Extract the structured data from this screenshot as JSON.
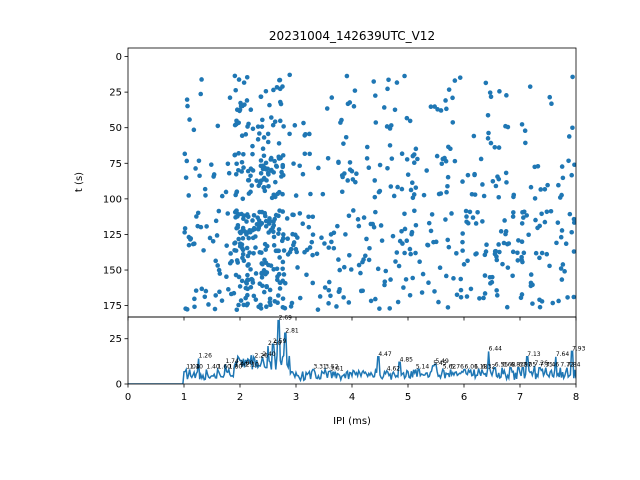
{
  "chart_data": [
    {
      "type": "scatter",
      "title": "20231004_142639UTC_V12",
      "xlabel": "",
      "ylabel": "t (s)",
      "xlim": [
        0,
        8
      ],
      "ylim": [
        183,
        -6
      ],
      "y_inverted": true,
      "yticks": [
        0,
        25,
        50,
        75,
        100,
        125,
        150,
        175
      ],
      "xticks": [
        0,
        1,
        2,
        3,
        4,
        5,
        6,
        7,
        8
      ],
      "point_color": "#1f77b4",
      "bands": [
        {
          "t_min": 12,
          "t_max": 65,
          "x_min": 1.0,
          "x_max": 8.0,
          "density": 0.5
        },
        {
          "t_min": 68,
          "t_max": 100,
          "x_min": 1.0,
          "x_max": 8.0,
          "density": 0.7
        },
        {
          "t_min": 108,
          "t_max": 140,
          "x_min": 1.0,
          "x_max": 8.0,
          "density": 1.0
        },
        {
          "t_min": 140,
          "t_max": 178,
          "x_min": 1.0,
          "x_max": 8.0,
          "density": 0.8
        }
      ]
    },
    {
      "type": "line",
      "xlabel": "IPI (ms)",
      "ylabel": "",
      "xlim": [
        0,
        8
      ],
      "ylim": [
        0,
        37
      ],
      "yticks": [
        0,
        25
      ],
      "xticks": [
        0,
        1,
        2,
        3,
        4,
        5,
        6,
        7,
        8
      ],
      "line_color": "#1f77b4",
      "peaks": [
        {
          "x": 1.04,
          "y": 8,
          "label": "1.04"
        },
        {
          "x": 1.1,
          "y": 8,
          "label": "1.10"
        },
        {
          "x": 1.26,
          "y": 14,
          "label": "1.26"
        },
        {
          "x": 1.4,
          "y": 8,
          "label": "1.40"
        },
        {
          "x": 1.6,
          "y": 8,
          "label": "1.60"
        },
        {
          "x": 1.74,
          "y": 11,
          "label": "1.74"
        },
        {
          "x": 1.8,
          "y": 8,
          "label": "1.80"
        },
        {
          "x": 1.9,
          "y": 9,
          "label": "1.90"
        },
        {
          "x": 2.0,
          "y": 10,
          "label": "2.00"
        },
        {
          "x": 2.1,
          "y": 9,
          "label": "2.10"
        },
        {
          "x": 2.26,
          "y": 14,
          "label": "2.26"
        },
        {
          "x": 2.4,
          "y": 15,
          "label": "2.40"
        },
        {
          "x": 2.5,
          "y": 21,
          "label": "2.50"
        },
        {
          "x": 2.59,
          "y": 22,
          "label": "2.59"
        },
        {
          "x": 2.69,
          "y": 35,
          "label": "2.69"
        },
        {
          "x": 2.81,
          "y": 28,
          "label": "2.81"
        },
        {
          "x": 3.31,
          "y": 8,
          "label": "3.31"
        },
        {
          "x": 3.52,
          "y": 8,
          "label": "3.52"
        },
        {
          "x": 3.61,
          "y": 7,
          "label": "3.61"
        },
        {
          "x": 4.47,
          "y": 15,
          "label": "4.47"
        },
        {
          "x": 4.62,
          "y": 7,
          "label": "4.62"
        },
        {
          "x": 4.85,
          "y": 12,
          "label": "4.85"
        },
        {
          "x": 5.14,
          "y": 8,
          "label": "5.14"
        },
        {
          "x": 5.45,
          "y": 10,
          "label": "5.45"
        },
        {
          "x": 5.49,
          "y": 11,
          "label": "5.49"
        },
        {
          "x": 5.62,
          "y": 8,
          "label": "5.62"
        },
        {
          "x": 5.76,
          "y": 8,
          "label": "5.76"
        },
        {
          "x": 6.01,
          "y": 8,
          "label": "6.01"
        },
        {
          "x": 6.18,
          "y": 8,
          "label": "6.18"
        },
        {
          "x": 6.32,
          "y": 8,
          "label": "6.32"
        },
        {
          "x": 6.44,
          "y": 18,
          "label": "6.44"
        },
        {
          "x": 6.55,
          "y": 9,
          "label": "6.55"
        },
        {
          "x": 6.68,
          "y": 9,
          "label": "6.68"
        },
        {
          "x": 6.83,
          "y": 9,
          "label": "6.83"
        },
        {
          "x": 6.97,
          "y": 9,
          "label": "6.97"
        },
        {
          "x": 7.05,
          "y": 9,
          "label": "7.05"
        },
        {
          "x": 7.13,
          "y": 15,
          "label": "7.13"
        },
        {
          "x": 7.26,
          "y": 10,
          "label": "7.26"
        },
        {
          "x": 7.35,
          "y": 9,
          "label": "7.35"
        },
        {
          "x": 7.46,
          "y": 9,
          "label": "7.46"
        },
        {
          "x": 7.64,
          "y": 15,
          "label": "7.64"
        },
        {
          "x": 7.72,
          "y": 9,
          "label": "7.72"
        },
        {
          "x": 7.84,
          "y": 9,
          "label": "7.84"
        },
        {
          "x": 7.93,
          "y": 18,
          "label": "7.93"
        }
      ]
    }
  ]
}
